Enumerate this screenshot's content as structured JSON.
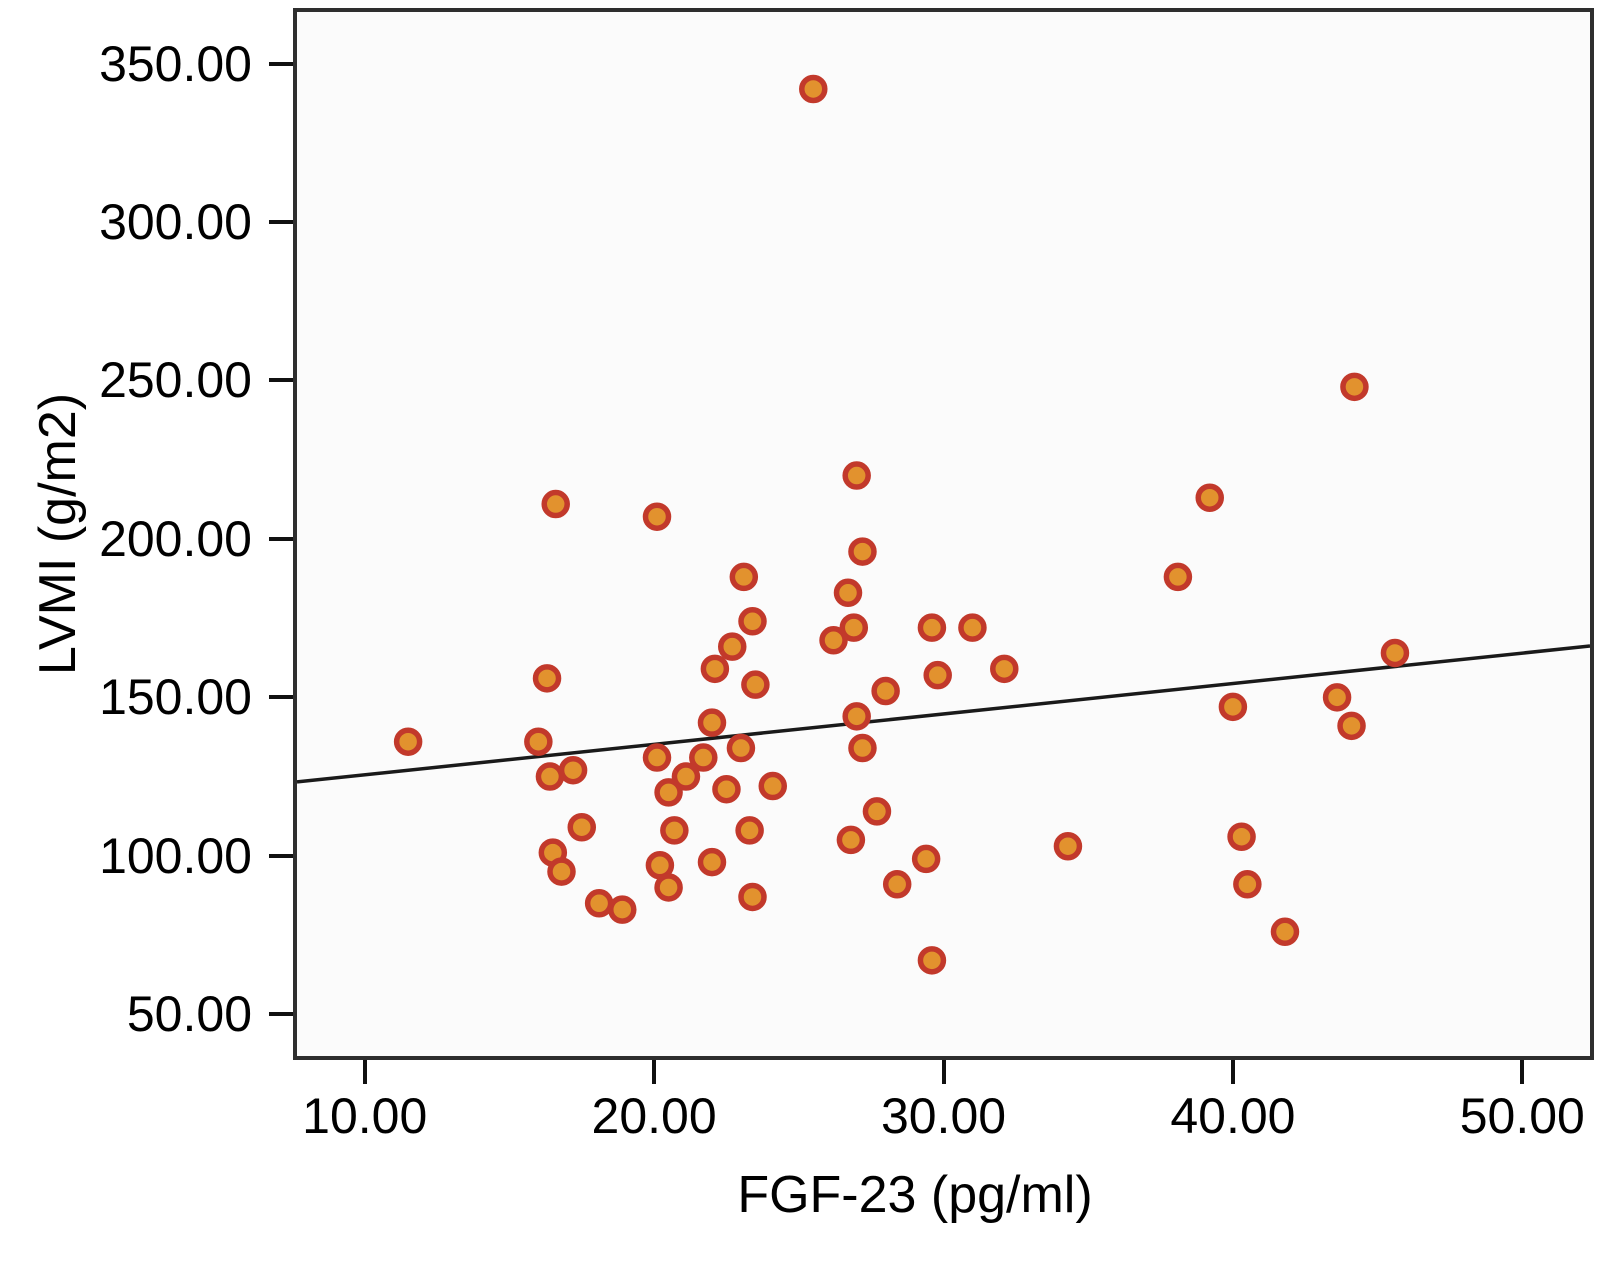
{
  "chart_data": {
    "type": "scatter",
    "title": "",
    "xlabel": "FGF-23 (pg/ml)",
    "ylabel": "LVMI (g/m2)",
    "xlim": [
      7.66,
      52.34
    ],
    "ylim": [
      36.8,
      366.3
    ],
    "x_ticks": [
      10,
      20,
      30,
      40,
      50
    ],
    "y_ticks": [
      50,
      100,
      150,
      200,
      250,
      300,
      350
    ],
    "tick_decimals": 2,
    "grid": false,
    "legend": "none",
    "points": [
      [
        11.5,
        136
      ],
      [
        16.6,
        211
      ],
      [
        20.1,
        207
      ],
      [
        16.3,
        156
      ],
      [
        16.0,
        136
      ],
      [
        16.4,
        125
      ],
      [
        17.2,
        127
      ],
      [
        16.5,
        101
      ],
      [
        16.8,
        95
      ],
      [
        17.5,
        109
      ],
      [
        18.1,
        85
      ],
      [
        18.9,
        83
      ],
      [
        20.1,
        131
      ],
      [
        21.7,
        131
      ],
      [
        20.5,
        120
      ],
      [
        21.1,
        125
      ],
      [
        22.0,
        142
      ],
      [
        23.0,
        134
      ],
      [
        22.5,
        121
      ],
      [
        24.1,
        122
      ],
      [
        20.7,
        108
      ],
      [
        23.3,
        108
      ],
      [
        20.2,
        97
      ],
      [
        22.0,
        98
      ],
      [
        20.5,
        90
      ],
      [
        23.4,
        87
      ],
      [
        23.1,
        188
      ],
      [
        23.4,
        174
      ],
      [
        22.7,
        166
      ],
      [
        22.1,
        159
      ],
      [
        23.5,
        154
      ],
      [
        25.5,
        342
      ],
      [
        27.0,
        220
      ],
      [
        27.2,
        196
      ],
      [
        26.7,
        183
      ],
      [
        26.9,
        172
      ],
      [
        26.2,
        168
      ],
      [
        27.0,
        144
      ],
      [
        27.2,
        134
      ],
      [
        27.7,
        114
      ],
      [
        26.8,
        105
      ],
      [
        28.0,
        152
      ],
      [
        28.4,
        91
      ],
      [
        29.4,
        99
      ],
      [
        29.6,
        67
      ],
      [
        29.8,
        157
      ],
      [
        29.6,
        172
      ],
      [
        31.0,
        172
      ],
      [
        32.1,
        159
      ],
      [
        34.3,
        103
      ],
      [
        38.1,
        188
      ],
      [
        39.2,
        213
      ],
      [
        40.0,
        147
      ],
      [
        40.3,
        106
      ],
      [
        40.5,
        91
      ],
      [
        41.8,
        76
      ],
      [
        43.6,
        150
      ],
      [
        44.1,
        141
      ],
      [
        44.2,
        248
      ],
      [
        45.6,
        164
      ]
    ],
    "trend_line": {
      "x1": 7.66,
      "y1": 123.3,
      "x2": 52.34,
      "y2": 166.2
    },
    "colors": {
      "point_fill": "#E2922E",
      "point_stroke": "#C2392B",
      "trend_line": "#1a1a1a",
      "frame": "#2e2e2e",
      "plot_bg": "#fbfbfb",
      "tick": "#111111"
    }
  }
}
